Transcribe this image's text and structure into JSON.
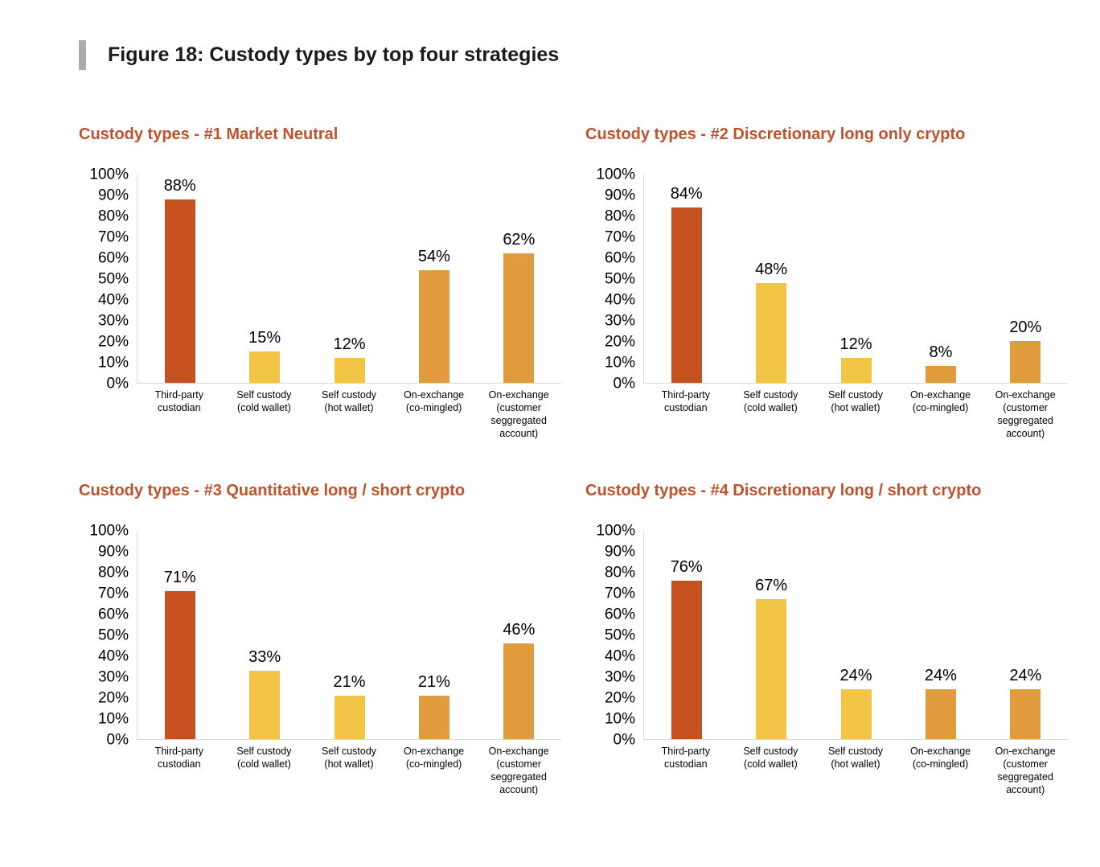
{
  "figure_title": "Figure 18: Custody types by top four strategies",
  "colors": {
    "accent_bar": "#ababab",
    "chart_title": "#c0512b",
    "axis_line": "#d9d9d9",
    "bar_palette": [
      "#c4511f",
      "#f2c445",
      "#f2c445",
      "#e09b3d",
      "#e09b3d"
    ]
  },
  "chart_data": [
    {
      "type": "bar",
      "title": "Custody types - #1 Market Neutral",
      "categories": [
        "Third-party\ncustodian",
        "Self custody\n(cold wallet)",
        "Self custody\n(hot wallet)",
        "On-exchange\n(co-mingled)",
        "On-exchange\n(customer\nseggregated\naccount)"
      ],
      "values": [
        88,
        15,
        12,
        54,
        62
      ],
      "unit": "%",
      "xlabel": "",
      "ylabel": "",
      "ylim": [
        0,
        100
      ],
      "ytick_step": 10,
      "grid": false,
      "legend": false
    },
    {
      "type": "bar",
      "title": "Custody types - #2 Discretionary long only crypto",
      "categories": [
        "Third-party\ncustodian",
        "Self custody\n(cold wallet)",
        "Self custody\n(hot wallet)",
        "On-exchange\n(co-mingled)",
        "On-exchange\n(customer\nseggregated\naccount)"
      ],
      "values": [
        84,
        48,
        12,
        8,
        20
      ],
      "unit": "%",
      "xlabel": "",
      "ylabel": "",
      "ylim": [
        0,
        100
      ],
      "ytick_step": 10,
      "grid": false,
      "legend": false
    },
    {
      "type": "bar",
      "title": "Custody types - #3 Quantitative long / short crypto",
      "categories": [
        "Third-party\ncustodian",
        "Self custody\n(cold wallet)",
        "Self custody\n(hot wallet)",
        "On-exchange\n(co-mingled)",
        "On-exchange\n(customer\nseggregated\naccount)"
      ],
      "values": [
        71,
        33,
        21,
        21,
        46
      ],
      "unit": "%",
      "xlabel": "",
      "ylabel": "",
      "ylim": [
        0,
        100
      ],
      "ytick_step": 10,
      "grid": false,
      "legend": false
    },
    {
      "type": "bar",
      "title": "Custody types - #4 Discretionary long / short crypto",
      "categories": [
        "Third-party\ncustodian",
        "Self custody\n(cold wallet)",
        "Self custody\n(hot wallet)",
        "On-exchange\n(co-mingled)",
        "On-exchange\n(customer\nseggregated\naccount)"
      ],
      "values": [
        76,
        67,
        24,
        24,
        24
      ],
      "unit": "%",
      "xlabel": "",
      "ylabel": "",
      "ylim": [
        0,
        100
      ],
      "ytick_step": 10,
      "grid": false,
      "legend": false
    }
  ]
}
